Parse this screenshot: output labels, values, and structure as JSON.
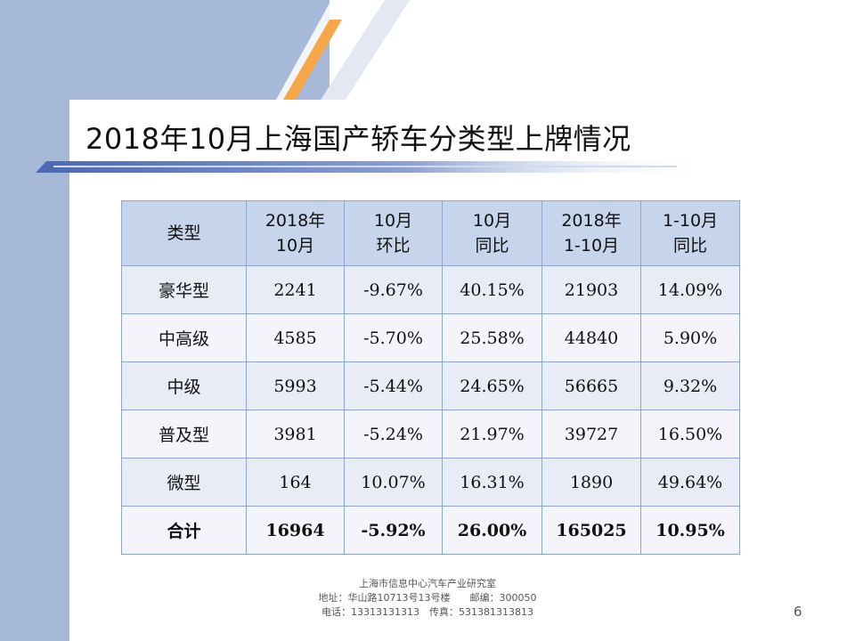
{
  "slide": {
    "title": "2018年10月上海国产轿车分类型上牌情况",
    "page_number": "6"
  },
  "table": {
    "headers": [
      [
        "类型"
      ],
      [
        "2018年",
        "10月"
      ],
      [
        "10月",
        "环比"
      ],
      [
        "10月",
        "同比"
      ],
      [
        "2018年",
        "1-10月"
      ],
      [
        "1-10月",
        "同比"
      ]
    ],
    "rows": [
      [
        "豪华型",
        "2241",
        "-9.67%",
        "40.15%",
        "21903",
        "14.09%"
      ],
      [
        "中高级",
        "4585",
        "-5.70%",
        "25.58%",
        "44840",
        "5.90%"
      ],
      [
        "中级",
        "5993",
        "-5.44%",
        "24.65%",
        "56665",
        "9.32%"
      ],
      [
        "普及型",
        "3981",
        "-5.24%",
        "21.97%",
        "39727",
        "16.50%"
      ],
      [
        "微型",
        "164",
        "10.07%",
        "16.31%",
        "1890",
        "49.64%"
      ]
    ],
    "total": [
      "合计",
      "16964",
      "-5.92%",
      "26.00%",
      "165025",
      "10.95%"
    ]
  },
  "footer": {
    "org": "上海市信息中心汽车产业研究室",
    "address": "地址：华山路10713号13号楼　　邮编：300050",
    "contact": "电话：13313131313　传真：531381313813"
  },
  "colors": {
    "band": "#a7b9d9",
    "orange_stripe": "#f6a74a",
    "header_fill": "#c6d4ec",
    "border": "#8ea4cf"
  }
}
